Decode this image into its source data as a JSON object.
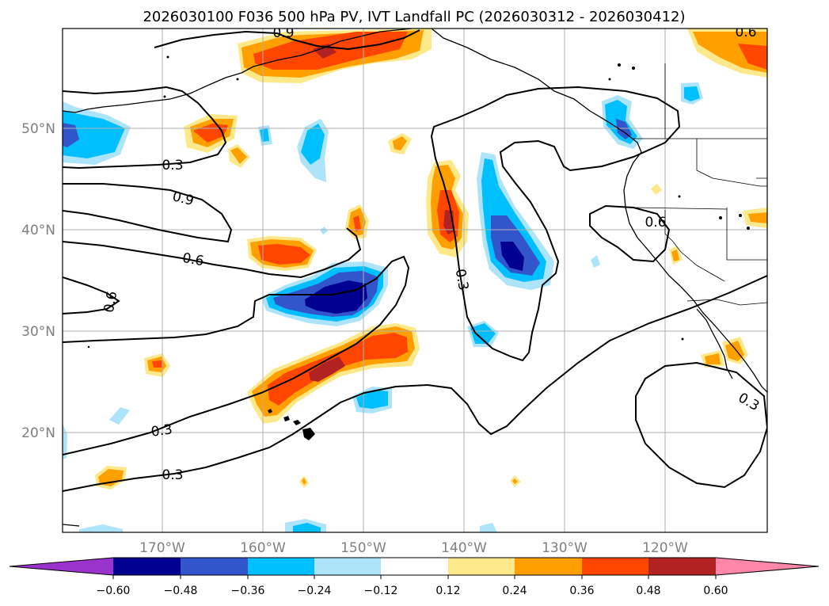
{
  "title": "2026030100 F036 500 hPa PV, IVT Landfall PC (2026030312 - 2026030412)",
  "map": {
    "lon_labels": [
      "170°W",
      "160°W",
      "150°W",
      "140°W",
      "130°W",
      "120°W"
    ],
    "lat_labels": [
      "50°N",
      "40°N",
      "30°N",
      "20°N"
    ],
    "contour_labels": [
      "0.9",
      "0.3",
      "0.9",
      "0.6",
      "0.6",
      "0.3",
      "0.6",
      "0.3",
      "0.3",
      "0.3",
      "0.6"
    ]
  },
  "colorbar": {
    "ticks": [
      "−0.60",
      "−0.48",
      "−0.36",
      "−0.24",
      "−0.12",
      "0.12",
      "0.24",
      "0.36",
      "0.48",
      "0.60"
    ],
    "colors": [
      "#9933cc",
      "#000090",
      "#3355cc",
      "#00bfff",
      "#aee4fa",
      "#ffffff",
      "#fde98a",
      "#ffa000",
      "#ff4500",
      "#b22222",
      "#ff88aa"
    ]
  },
  "colors": {
    "neg_strong": "#000090",
    "neg_mid": "#3355cc",
    "neg": "#00bfff",
    "neg_light": "#aee4fa",
    "pos_light": "#fde98a",
    "pos": "#ffa000",
    "pos_mid": "#ff4500",
    "pos_strong": "#b22222"
  }
}
